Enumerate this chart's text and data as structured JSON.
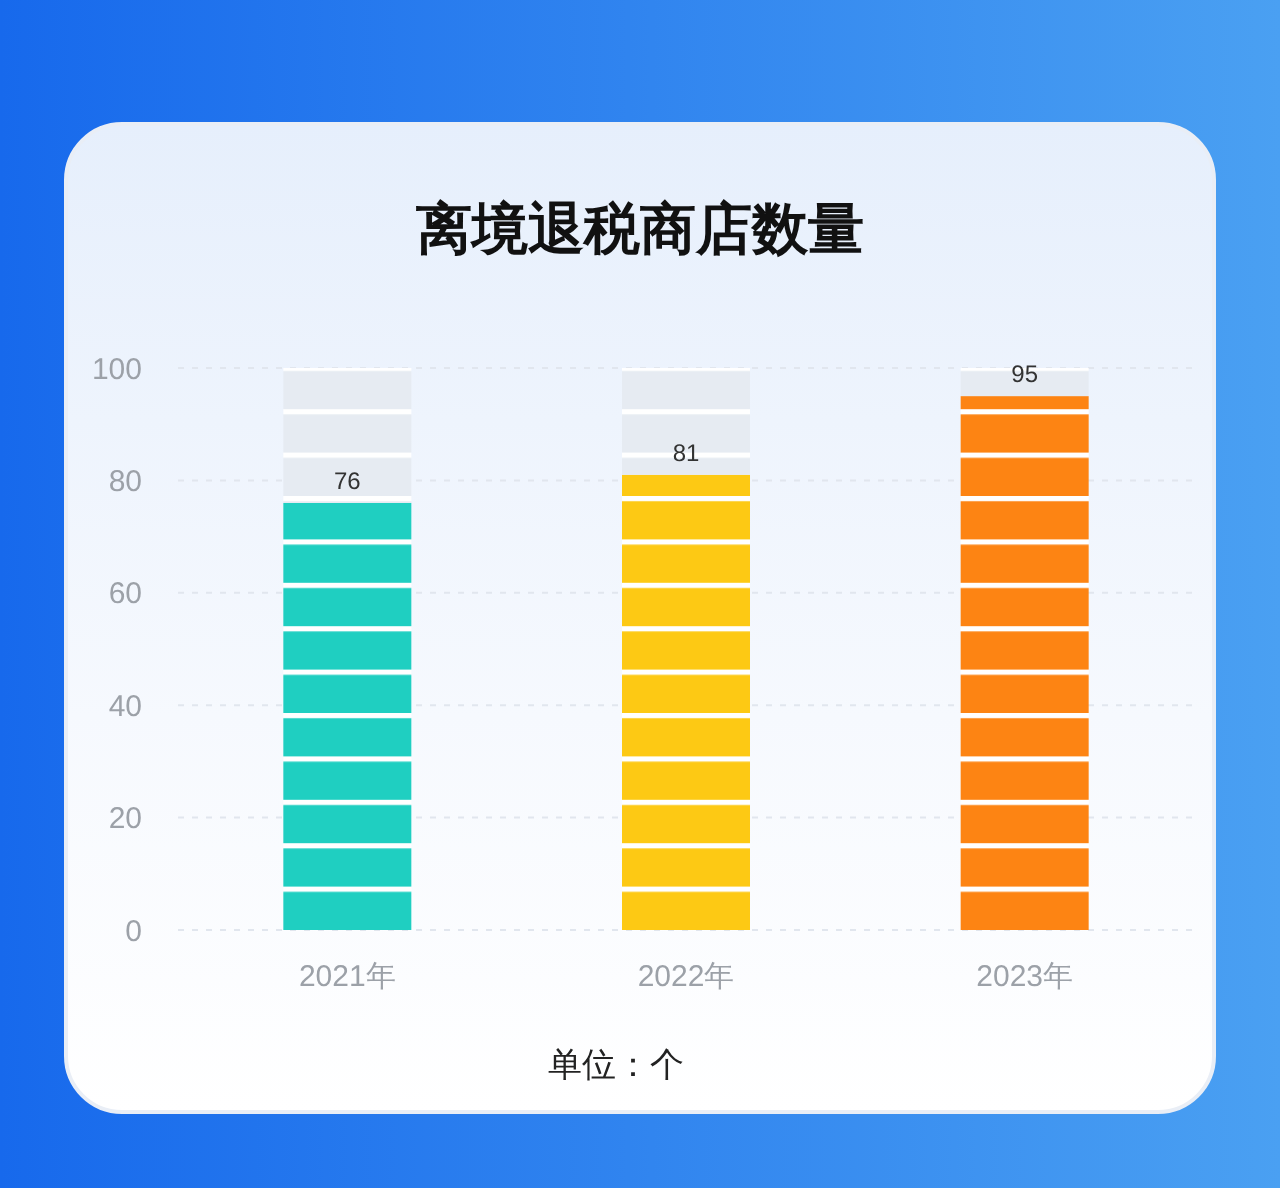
{
  "chart_data": {
    "type": "bar",
    "title": "离境退税商店数量",
    "categories": [
      "2021年",
      "2022年",
      "2023年"
    ],
    "stacked": true,
    "series": [
      {
        "colors": [
          "#1fcfc1",
          "#fdc914",
          "#fd8413"
        ],
        "values": [
          76,
          81,
          95
        ],
        "value_labels": [
          "76",
          "81",
          "95"
        ]
      },
      {
        "color": "#e6ebf2",
        "values": [
          24,
          19,
          5
        ]
      }
    ],
    "ylim": [
      0,
      100
    ],
    "yticks": [
      0,
      20,
      40,
      60,
      80,
      100
    ],
    "grid": "y",
    "annotations": [
      "单位：个"
    ]
  }
}
